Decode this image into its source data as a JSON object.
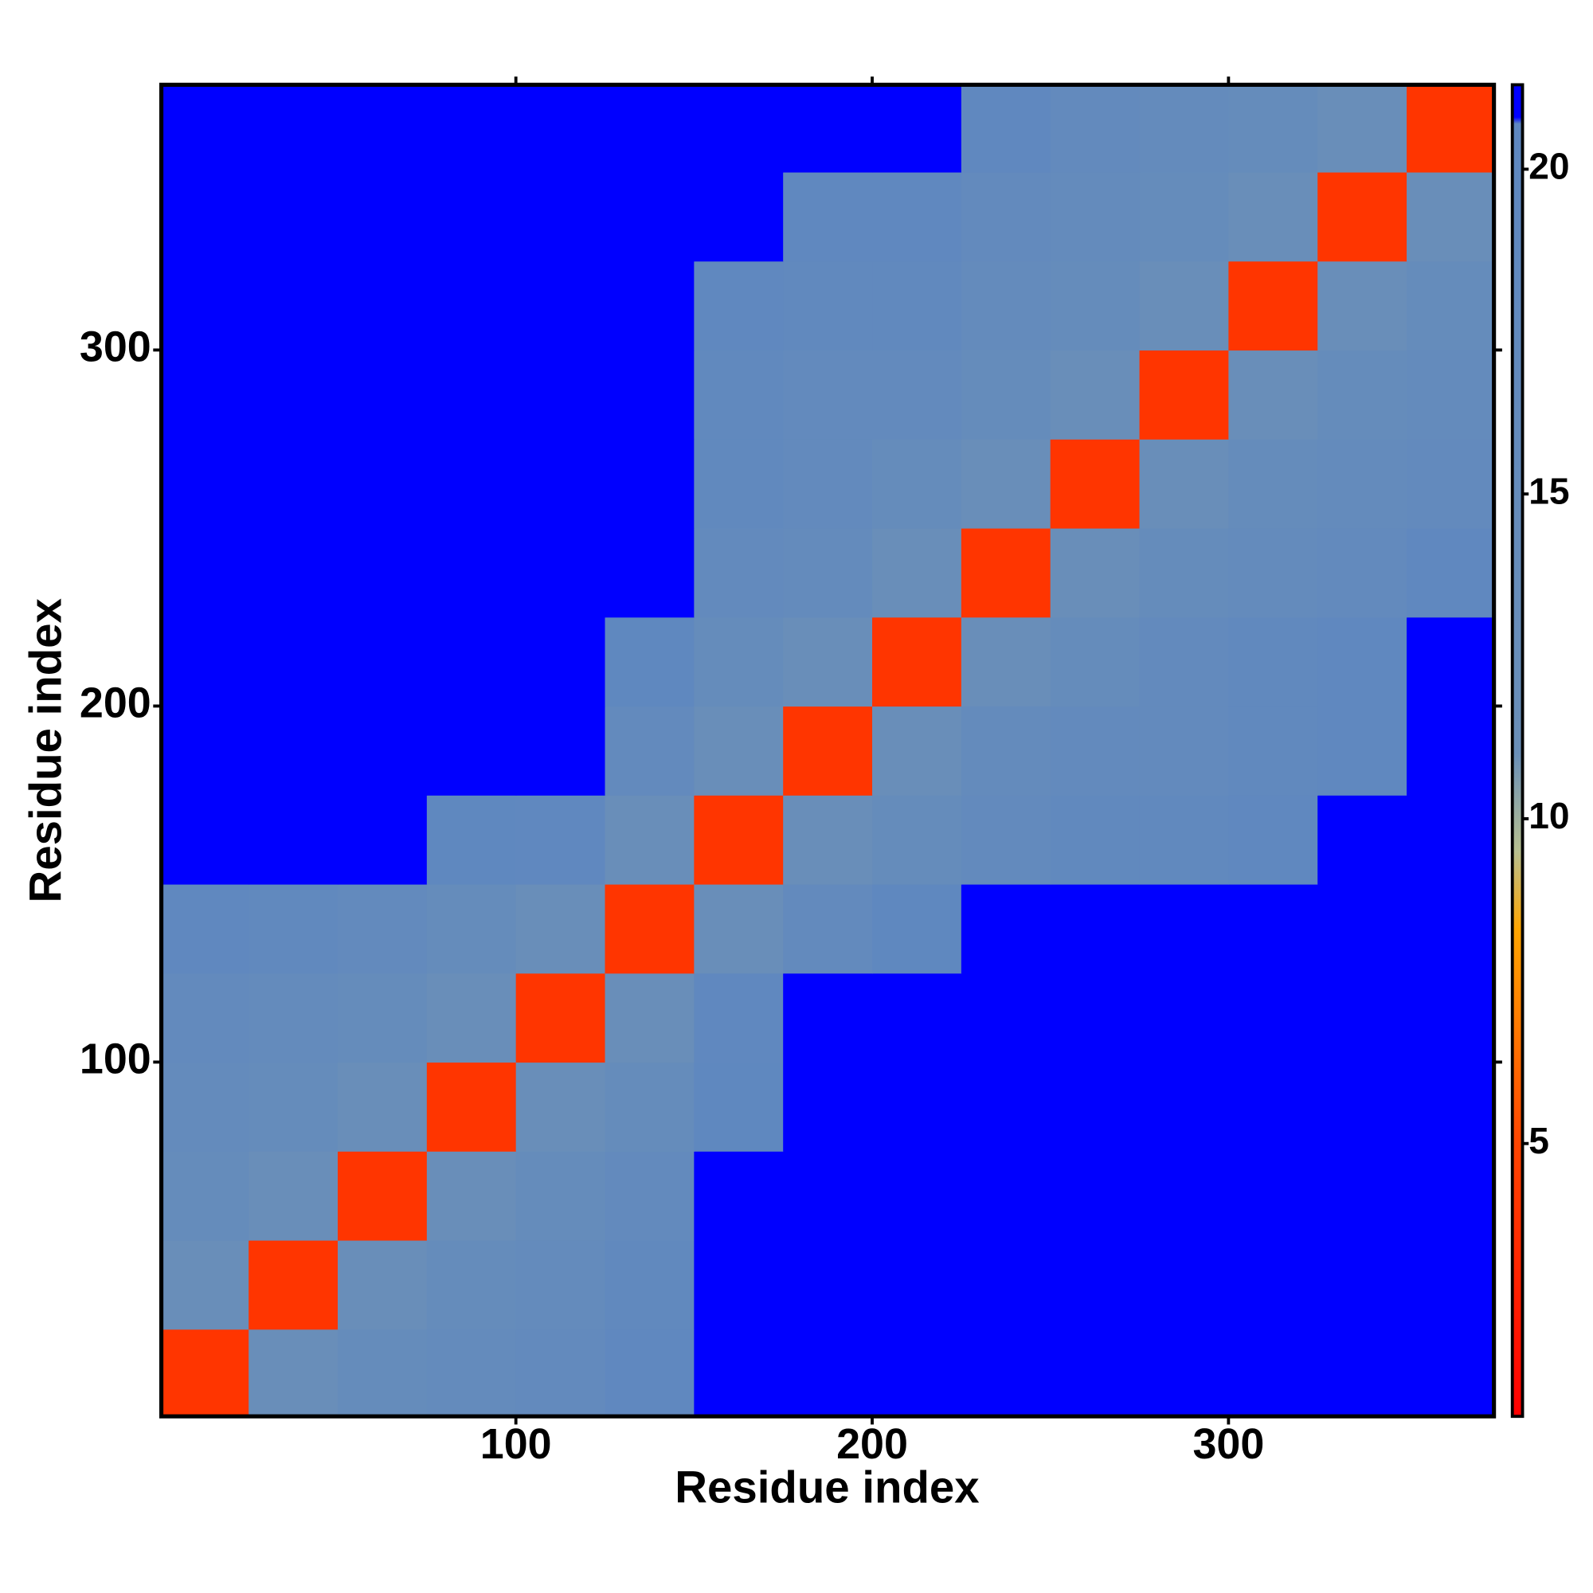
{
  "chart_data": {
    "type": "heatmap",
    "xlabel": "Residue index",
    "ylabel": "Residue index",
    "xlim": [
      0.5,
      374.5
    ],
    "ylim": [
      0.5,
      374.5
    ],
    "xticks": [
      100,
      200,
      300
    ],
    "yticks": [
      100,
      200,
      300
    ],
    "xbins": [
      0,
      25,
      50,
      75,
      100,
      125,
      150,
      175,
      200,
      225,
      250,
      275,
      300,
      325,
      350,
      375
    ],
    "ybins": [
      0,
      25,
      50,
      75,
      100,
      125,
      150,
      175,
      200,
      225,
      250,
      275,
      300,
      325,
      350,
      375
    ],
    "z": [
      [
        4,
        12,
        15,
        16,
        17,
        19,
        21,
        21,
        21,
        21,
        21,
        21,
        21,
        21,
        21
      ],
      [
        12,
        4,
        12,
        15,
        16,
        18,
        21,
        21,
        21,
        21,
        21,
        21,
        21,
        21,
        21
      ],
      [
        15,
        12,
        4,
        12,
        15,
        17,
        21,
        21,
        21,
        21,
        21,
        21,
        21,
        21,
        21
      ],
      [
        16,
        15,
        12,
        4,
        12,
        15,
        20,
        21,
        21,
        21,
        21,
        21,
        21,
        21,
        21
      ],
      [
        17,
        16,
        15,
        12,
        4,
        12,
        19,
        21,
        21,
        21,
        21,
        21,
        21,
        21,
        21
      ],
      [
        19,
        18,
        17,
        15,
        12,
        4,
        12,
        17,
        20,
        21,
        21,
        21,
        21,
        21,
        21
      ],
      [
        21,
        21,
        21,
        20,
        19,
        12,
        4,
        12,
        15,
        17,
        18,
        18,
        19,
        21,
        21
      ],
      [
        21,
        21,
        21,
        21,
        21,
        17,
        12,
        4,
        12,
        16,
        17,
        17,
        18,
        19,
        21
      ],
      [
        21,
        21,
        21,
        21,
        21,
        20,
        15,
        12,
        4,
        12,
        15,
        17,
        18,
        19,
        21
      ],
      [
        21,
        21,
        21,
        21,
        21,
        21,
        17,
        16,
        12,
        4,
        12,
        15,
        16,
        17,
        19
      ],
      [
        21,
        21,
        21,
        21,
        21,
        21,
        18,
        17,
        15,
        12,
        4,
        12,
        15,
        16,
        17
      ],
      [
        21,
        21,
        21,
        21,
        21,
        21,
        18,
        17,
        17,
        15,
        12,
        4,
        12,
        15,
        16
      ],
      [
        21,
        21,
        21,
        21,
        21,
        21,
        19,
        18,
        18,
        16,
        15,
        12,
        4,
        12,
        15
      ],
      [
        21,
        21,
        21,
        21,
        21,
        21,
        21,
        19,
        19,
        17,
        16,
        15,
        12,
        4,
        12
      ],
      [
        21,
        21,
        21,
        21,
        21,
        21,
        21,
        21,
        21,
        19,
        17,
        16,
        15,
        12,
        4
      ]
    ],
    "colorbar": {
      "lim": [
        0.8,
        21.3
      ],
      "ticks": [
        5,
        10,
        15,
        20
      ],
      "colorscale": [
        [
          0.8,
          "#ff0000"
        ],
        [
          5,
          "#ff4500"
        ],
        [
          8.3,
          "#ffa500"
        ],
        [
          9.5,
          "#b8c090"
        ],
        [
          11,
          "#6a8fb8"
        ],
        [
          20.7,
          "#5e87c0"
        ],
        [
          20.8,
          "#0000ff"
        ],
        [
          21.3,
          "#0000ff"
        ]
      ]
    }
  }
}
